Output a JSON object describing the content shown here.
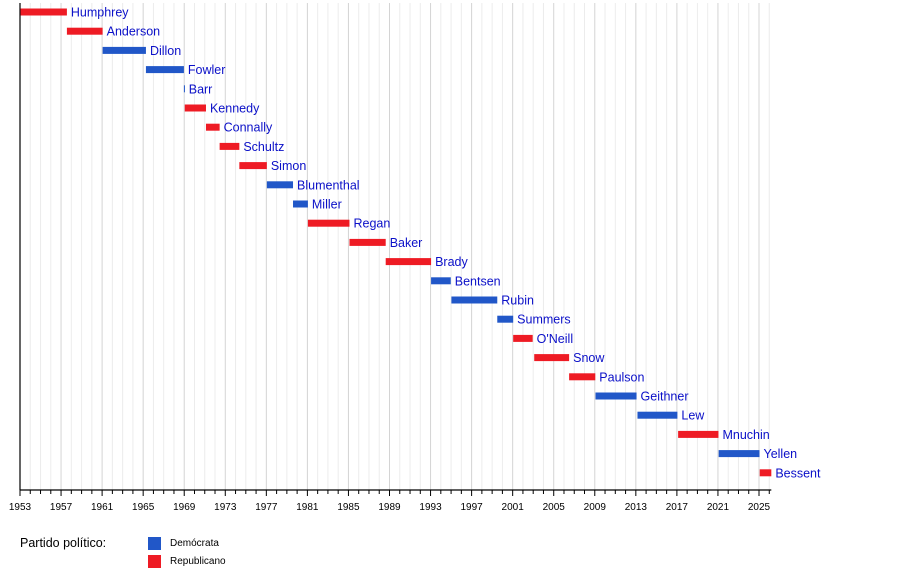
{
  "chart_data": {
    "type": "timeline",
    "xlim": [
      1953,
      2026.2
    ],
    "x_ticks": [
      "1953",
      "1957",
      "1961",
      "1965",
      "1969",
      "1973",
      "1977",
      "1981",
      "1985",
      "1989",
      "1993",
      "1997",
      "2001",
      "2005",
      "2009",
      "2013",
      "2017",
      "2021",
      "2025"
    ],
    "grid": true,
    "colors": {
      "Demócrata": "#2157c8",
      "Republicano": "#ee1b24"
    },
    "series": [
      {
        "name": "Humphrey",
        "party": "Republicano",
        "start": 1953.05,
        "end": 1957.57
      },
      {
        "name": "Anderson",
        "party": "Republicano",
        "start": 1957.57,
        "end": 1961.05
      },
      {
        "name": "Dillon",
        "party": "Demócrata",
        "start": 1961.05,
        "end": 1965.27
      },
      {
        "name": "Fowler",
        "party": "Demócrata",
        "start": 1965.27,
        "end": 1968.97
      },
      {
        "name": "Barr",
        "party": "Demócrata",
        "start": 1968.97,
        "end": 1969.05
      },
      {
        "name": "Kennedy",
        "party": "Republicano",
        "start": 1969.05,
        "end": 1971.12
      },
      {
        "name": "Connally",
        "party": "Republicano",
        "start": 1971.12,
        "end": 1972.45
      },
      {
        "name": "Schultz",
        "party": "Republicano",
        "start": 1972.45,
        "end": 1974.37
      },
      {
        "name": "Simon",
        "party": "Republicano",
        "start": 1974.37,
        "end": 1977.05
      },
      {
        "name": "Blumenthal",
        "party": "Demócrata",
        "start": 1977.05,
        "end": 1979.6
      },
      {
        "name": "Miller",
        "party": "Demócrata",
        "start": 1979.6,
        "end": 1981.05
      },
      {
        "name": "Regan",
        "party": "Republicano",
        "start": 1981.05,
        "end": 1985.1
      },
      {
        "name": "Baker",
        "party": "Republicano",
        "start": 1985.1,
        "end": 1988.63
      },
      {
        "name": "Brady",
        "party": "Republicano",
        "start": 1988.63,
        "end": 1993.05
      },
      {
        "name": "Bentsen",
        "party": "Demócrata",
        "start": 1993.05,
        "end": 1994.97
      },
      {
        "name": "Rubin",
        "party": "Demócrata",
        "start": 1995.03,
        "end": 1999.5
      },
      {
        "name": "Summers",
        "party": "Demócrata",
        "start": 1999.5,
        "end": 2001.05
      },
      {
        "name": "O'Neill",
        "party": "Republicano",
        "start": 2001.05,
        "end": 2002.95
      },
      {
        "name": "Snow",
        "party": "Republicano",
        "start": 2003.1,
        "end": 2006.5
      },
      {
        "name": "Paulson",
        "party": "Republicano",
        "start": 2006.5,
        "end": 2009.05
      },
      {
        "name": "Geithner",
        "party": "Demócrata",
        "start": 2009.07,
        "end": 2013.07
      },
      {
        "name": "Lew",
        "party": "Demócrata",
        "start": 2013.16,
        "end": 2017.05
      },
      {
        "name": "Mnuchin",
        "party": "Republicano",
        "start": 2017.12,
        "end": 2021.05
      },
      {
        "name": "Yellen",
        "party": "Demócrata",
        "start": 2021.07,
        "end": 2025.05
      },
      {
        "name": "Bessent",
        "party": "Republicano",
        "start": 2025.07,
        "end": 2026.2
      }
    ]
  },
  "legend": {
    "title": "Partido político:",
    "items": [
      {
        "label": "Demócrata",
        "color": "#2157c8"
      },
      {
        "label": "Republicano",
        "color": "#ee1b24"
      }
    ]
  }
}
